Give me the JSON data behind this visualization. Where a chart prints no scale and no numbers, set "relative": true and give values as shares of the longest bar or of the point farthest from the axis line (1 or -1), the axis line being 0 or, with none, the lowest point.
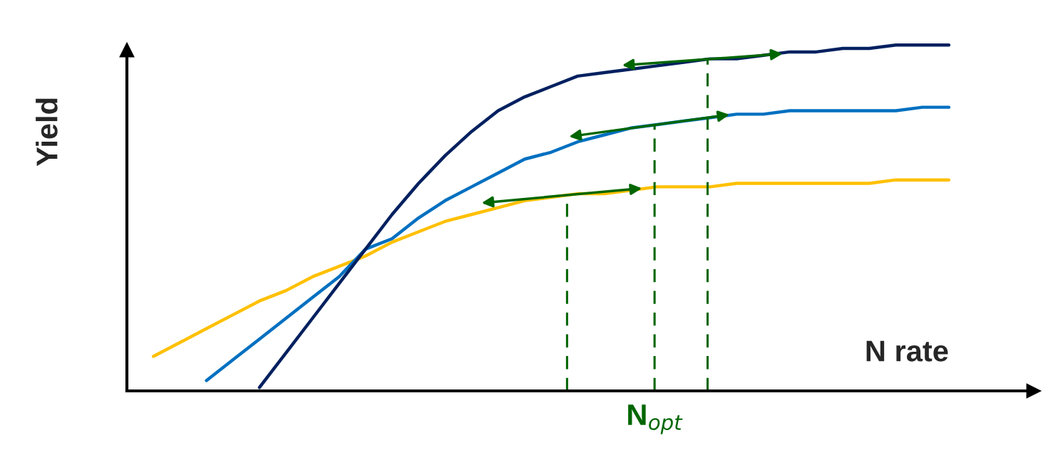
{
  "chart_data": {
    "type": "line",
    "relative": true,
    "xlabel": "N rate",
    "ylabel": "Yield",
    "categories": [
      null,
      null,
      null,
      null,
      null,
      null,
      null,
      null,
      null,
      null,
      null,
      null,
      null,
      null,
      null,
      null,
      null,
      null,
      null,
      null,
      null,
      null,
      null,
      null,
      null,
      null,
      null,
      null,
      null,
      null,
      null
    ],
    "series": [
      {
        "color": "#ffc000",
        "values": [
          0.1,
          0.14,
          0.18,
          0.22,
          0.26,
          0.29,
          0.33,
          0.36,
          0.39,
          0.43,
          0.46,
          0.49,
          0.51,
          0.53,
          0.55,
          0.56,
          0.57,
          0.57,
          0.58,
          0.59,
          0.59,
          0.59,
          0.6,
          0.6,
          0.6,
          0.6,
          0.6,
          0.6,
          0.61,
          0.61,
          0.61
        ]
      },
      {
        "color": "#0070c0",
        "values": [
          null,
          null,
          0.03,
          0.09,
          0.15,
          0.21,
          0.27,
          0.33,
          0.41,
          0.44,
          0.5,
          0.55,
          0.59,
          0.63,
          0.67,
          0.69,
          0.72,
          0.74,
          0.76,
          0.77,
          0.78,
          0.79,
          0.8,
          0.8,
          0.81,
          0.81,
          0.81,
          0.81,
          0.81,
          0.82,
          0.82
        ]
      },
      {
        "color": "#002060",
        "values": [
          null,
          null,
          null,
          null,
          0.01,
          0.11,
          0.21,
          0.31,
          0.41,
          0.51,
          0.6,
          0.68,
          0.75,
          0.81,
          0.85,
          0.88,
          0.91,
          0.92,
          0.93,
          0.94,
          0.95,
          0.96,
          0.96,
          0.97,
          0.98,
          0.98,
          0.99,
          0.99,
          1.0,
          1.0,
          1.0
        ]
      }
    ],
    "annotations": [
      "N$_{opt}$"
    ],
    "marker": "none",
    "line_style": "solid"
  }
}
